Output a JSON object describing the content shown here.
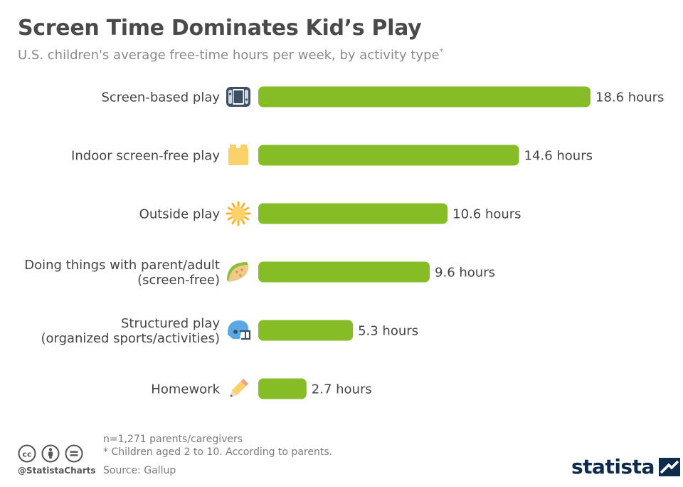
{
  "title": "Screen Time Dominates Kid’s Play",
  "subtitle": "U.S. children's average free-time hours per week, by activity type",
  "subtitle_mark": "*",
  "bar_color": "#86bc25",
  "chart_data": {
    "type": "bar",
    "orientation": "horizontal",
    "categories": [
      "Screen-based play",
      "Indoor screen-free play",
      "Outside play",
      "Doing things with parent/adult (screen-free)",
      "Structured play (organized sports/activities)",
      "Homework"
    ],
    "category_lines": [
      [
        "Screen-based play"
      ],
      [
        "Indoor screen-free play"
      ],
      [
        "Outside play"
      ],
      [
        "Doing things with parent/adult",
        "(screen-free)"
      ],
      [
        "Structured play",
        "(organized sports/activities)"
      ],
      [
        "Homework"
      ]
    ],
    "values": [
      18.6,
      14.6,
      10.6,
      9.6,
      5.3,
      2.7
    ],
    "value_labels": [
      "18.6 hours",
      "14.6 hours",
      "10.6 hours",
      "9.6 hours",
      "5.3 hours",
      "2.7 hours"
    ],
    "icons": [
      "game-console-icon",
      "toy-block-icon",
      "sun-icon",
      "taco-icon",
      "football-helmet-icon",
      "pencil-icon"
    ],
    "xlim": [
      0,
      18.6
    ]
  },
  "footer": {
    "note_sample": "n=1,271 parents/caregivers",
    "note_age": "* Children aged 2 to 10. According to parents.",
    "source": "Source: Gallup",
    "handle": "@StatistaCharts",
    "logo": "statista"
  }
}
